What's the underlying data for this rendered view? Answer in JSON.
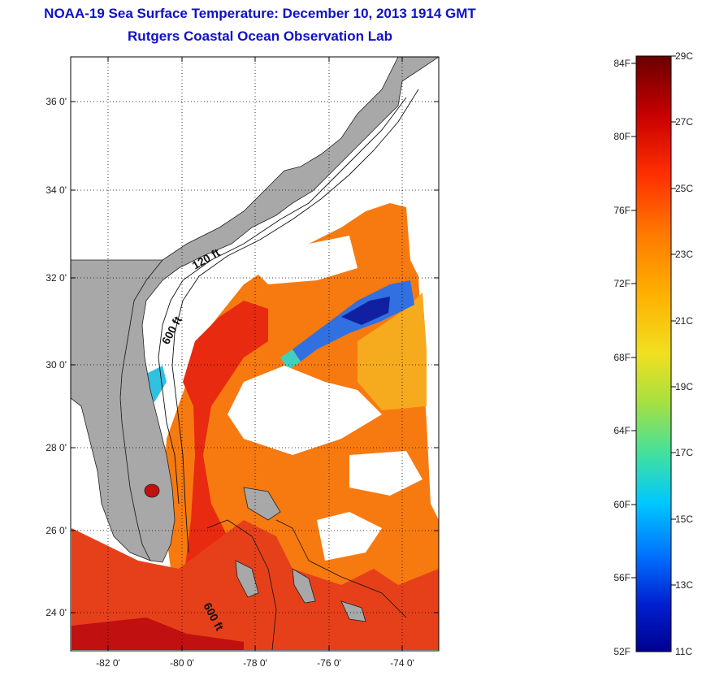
{
  "title": {
    "line1": "NOAA-19 Sea Surface Temperature:  December 10, 2013 1914 GMT",
    "line2": "Rutgers Coastal Ocean Observation Lab"
  },
  "map": {
    "lat_ticks": [
      "36 0'",
      "34 0'",
      "32 0'",
      "30 0'",
      "28 0'",
      "26 0'",
      "24 0'"
    ],
    "lon_ticks": [
      "-82 0'",
      "-80 0'",
      "-78 0'",
      "-76 0'",
      "-74 0'"
    ],
    "isobaths": [
      "120 ft",
      "600 ft",
      "600 ft"
    ],
    "colors": {
      "land": "#a8a8a8",
      "cloud": "#ffffff",
      "grid": "#000000"
    }
  },
  "colorbar": {
    "fahrenheit": [
      "84F",
      "80F",
      "76F",
      "72F",
      "68F",
      "64F",
      "60F",
      "56F",
      "52F"
    ],
    "celsius": [
      "29C",
      "27C",
      "25C",
      "23C",
      "21C",
      "19C",
      "17C",
      "15C",
      "13C",
      "11C"
    ],
    "gradient": [
      "#6a0000",
      "#c80000",
      "#ff3000",
      "#ff7a00",
      "#ffb000",
      "#f0e020",
      "#a8e040",
      "#40e0a0",
      "#00c8ff",
      "#0070ff",
      "#0020d0",
      "#000090"
    ]
  }
}
